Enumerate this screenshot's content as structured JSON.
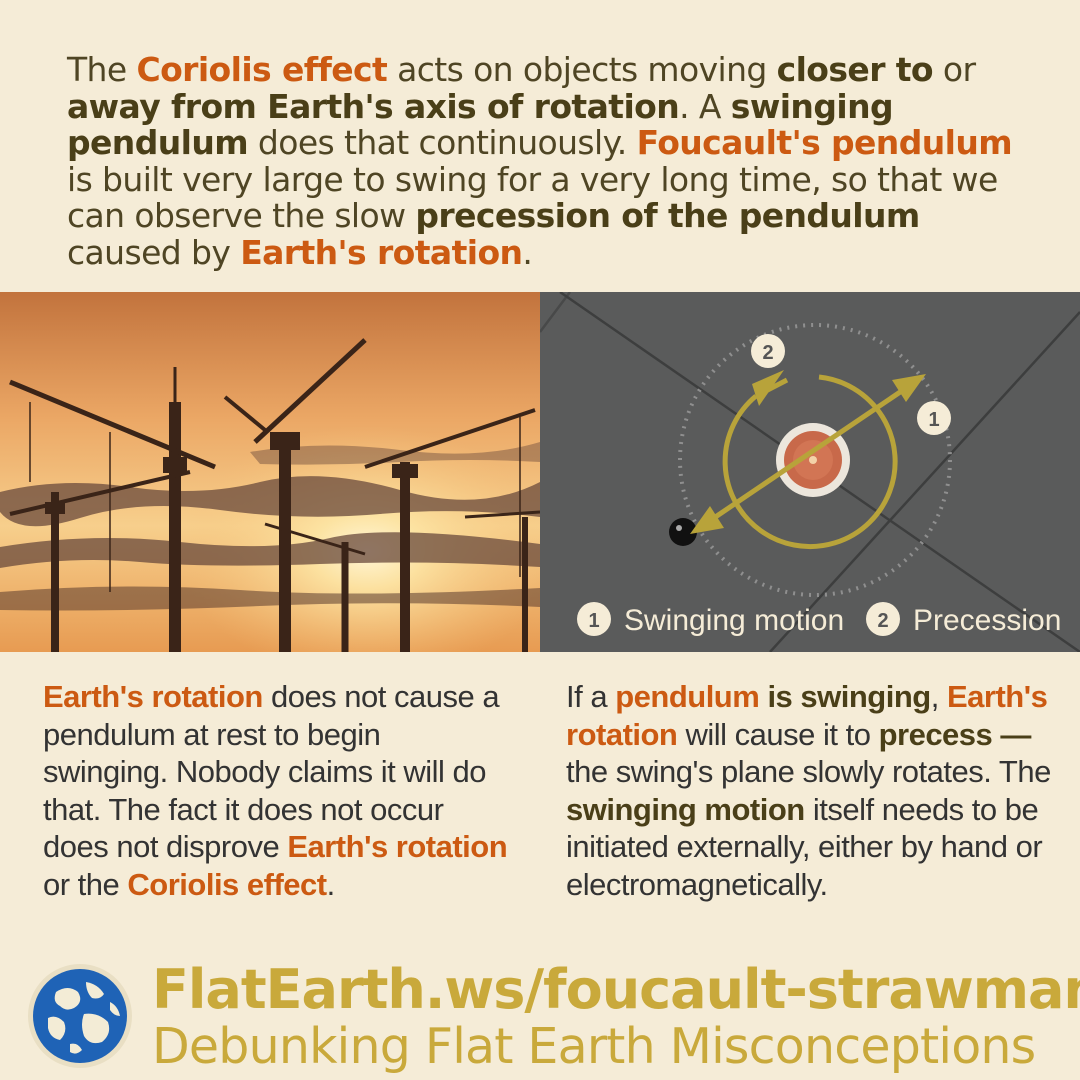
{
  "intro": [
    {
      "t": "The ",
      "s": "n"
    },
    {
      "t": "Coriolis effect",
      "s": "o"
    },
    {
      "t": " acts on objects moving ",
      "s": "n"
    },
    {
      "t": "closer to",
      "s": "b"
    },
    {
      "t": " or ",
      "s": "n"
    },
    {
      "t": "away from Earth's axis of rotation",
      "s": "b"
    },
    {
      "t": ". A ",
      "s": "n"
    },
    {
      "t": "swinging pendulum",
      "s": "b"
    },
    {
      "t": " does that continuously. ",
      "s": "n"
    },
    {
      "t": "Foucault's pendulum",
      "s": "o"
    },
    {
      "t": " is built very large to swing for a very long time, so that we can observe the slow ",
      "s": "n"
    },
    {
      "t": "precession of the pendulum",
      "s": "b"
    },
    {
      "t": " caused by ",
      "s": "n"
    },
    {
      "t": "Earth's rotation",
      "s": "o"
    },
    {
      "t": ".",
      "s": "n"
    }
  ],
  "left_column": [
    {
      "t": "Earth's rotation",
      "s": "o"
    },
    {
      "t": " does not cause a pendulum at rest to begin swinging. Nobody claims it will do that. The fact it does not occur does not disprove ",
      "s": "n"
    },
    {
      "t": "Earth's rotation",
      "s": "o"
    },
    {
      "t": " or the ",
      "s": "n"
    },
    {
      "t": "Coriolis effect",
      "s": "o"
    },
    {
      "t": ".",
      "s": "n"
    }
  ],
  "right_column": [
    {
      "t": "If a ",
      "s": "n"
    },
    {
      "t": "pendulum",
      "s": "o"
    },
    {
      "t": " ",
      "s": "n"
    },
    {
      "t": "is swinging",
      "s": "b"
    },
    {
      "t": ", ",
      "s": "n"
    },
    {
      "t": "Earth's rotation",
      "s": "o"
    },
    {
      "t": " will cause it to ",
      "s": "n"
    },
    {
      "t": "precess —",
      "s": "b"
    },
    {
      "t": " the swing's plane slowly rotates. The ",
      "s": "n"
    },
    {
      "t": "swinging motion",
      "s": "b"
    },
    {
      "t": " itself needs to be initiated externally, either by hand or electromagnetically.",
      "s": "n"
    }
  ],
  "diagram": {
    "marker_1": "1",
    "marker_2": "2",
    "legend_1": "Swinging motion",
    "legend_2": "Precession"
  },
  "footer": {
    "url": "FlatEarth.ws/foucault-strawman",
    "tagline": "Debunking Flat Earth Misconceptions"
  },
  "colors": {
    "background": "#f5ecd7",
    "highlight_orange": "#cc5a12",
    "highlight_bold": "#4a3f18",
    "brand_gold": "#c9a93b",
    "arrow_gold": "#b8a33a"
  }
}
